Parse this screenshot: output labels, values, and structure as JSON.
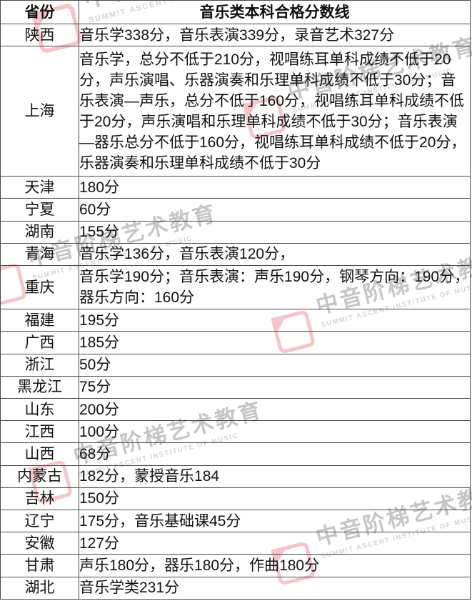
{
  "table": {
    "header": {
      "province": "省份",
      "title": "音乐类本科合格分数线"
    },
    "rows": [
      {
        "province": "陕西",
        "score": "音乐学338分，音乐表演339分，录音艺术327分"
      },
      {
        "province": "上海",
        "score": "音乐学，总分不低于210分，视唱练耳单科成绩不低于20分，声乐演唱、乐器演奏和乐理单科成绩不低于30分；音乐表演—声乐，总分不低于160分，视唱练耳单科成绩不低于20分，声乐演唱和乐理单科成绩不低于30分；音乐表演—器乐总分不低于160分，视唱练耳单科成绩不低于20分，乐器演奏和乐理单科成绩不低于30分"
      },
      {
        "province": "天津",
        "score": "180分"
      },
      {
        "province": "宁夏",
        "score": "60分"
      },
      {
        "province": "湖南",
        "score": "155分"
      },
      {
        "province": "青海",
        "score": "音乐学136分，音乐表演120分，"
      },
      {
        "province": "重庆",
        "score": "音乐学190分；音乐表演：声乐190分，钢琴方向：190分，器乐方向：160分"
      },
      {
        "province": "福建",
        "score": "195分"
      },
      {
        "province": "广西",
        "score": "185分"
      },
      {
        "province": "浙江",
        "score": "50分"
      },
      {
        "province": "黑龙江",
        "score": "75分"
      },
      {
        "province": "山东",
        "score": "200分"
      },
      {
        "province": "江西",
        "score": "100分"
      },
      {
        "province": "山西",
        "score": "68分"
      },
      {
        "province": "内蒙古",
        "score": "182分，蒙授音乐184"
      },
      {
        "province": "吉林",
        "score": "150分"
      },
      {
        "province": "辽宁",
        "score": "175分，音乐基础课45分"
      },
      {
        "province": "安徽",
        "score": "127分"
      },
      {
        "province": "甘肃",
        "score": "声乐180分，器乐180分，作曲180分"
      },
      {
        "province": "湖北",
        "score": "音乐学类231分"
      }
    ]
  },
  "watermark": {
    "cjk": "中音阶梯艺术教育",
    "latin": "SUMMIT ASCENT INSTITUTE OF MUSIC",
    "text_color": "#8f8f8f",
    "logo_color": "#ee8d98"
  }
}
